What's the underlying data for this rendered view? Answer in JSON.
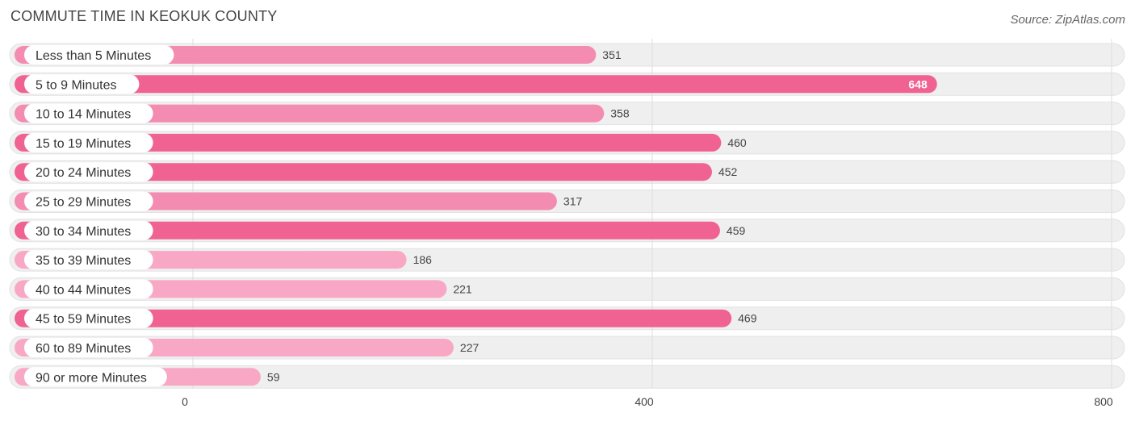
{
  "header": {
    "title": "COMMUTE TIME IN KEOKUK COUNTY",
    "source": "Source: ZipAtlas.com"
  },
  "colors": {
    "bar_strong": "#f06292",
    "bar_medium": "#f48bb0",
    "bar_light": "#f8a8c5",
    "row_bg": "#efefef",
    "grid": "#dddddd"
  },
  "chart_data": {
    "type": "bar",
    "orientation": "horizontal",
    "title": "COMMUTE TIME IN KEOKUK COUNTY",
    "xlabel": "",
    "ylabel": "",
    "xlim": [
      0,
      800
    ],
    "ticks": [
      0,
      400,
      800
    ],
    "tick_labels": [
      "0",
      "400",
      "800"
    ],
    "categories": [
      "Less than 5 Minutes",
      "5 to 9 Minutes",
      "10 to 14 Minutes",
      "15 to 19 Minutes",
      "20 to 24 Minutes",
      "25 to 29 Minutes",
      "30 to 34 Minutes",
      "35 to 39 Minutes",
      "40 to 44 Minutes",
      "45 to 59 Minutes",
      "60 to 89 Minutes",
      "90 or more Minutes"
    ],
    "values": [
      351,
      648,
      358,
      460,
      452,
      317,
      459,
      186,
      221,
      469,
      227,
      59
    ],
    "value_labels": [
      "351",
      "648",
      "358",
      "460",
      "452",
      "317",
      "459",
      "186",
      "221",
      "469",
      "227",
      "59"
    ]
  }
}
